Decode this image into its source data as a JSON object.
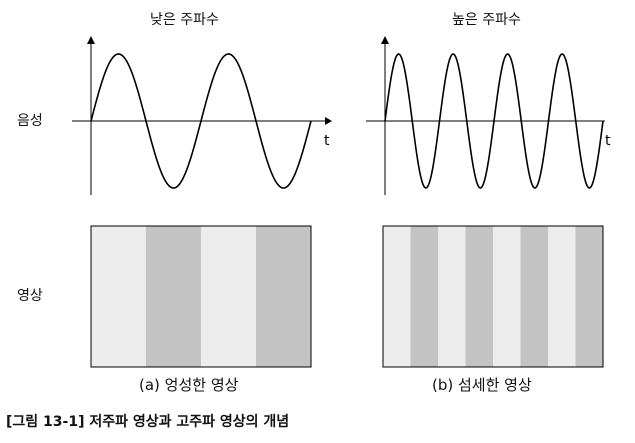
{
  "titles": {
    "low_frequency": "낮은 주파수",
    "high_frequency": "높은 주파수"
  },
  "row_labels": {
    "audio": "음성",
    "video": "영상"
  },
  "axis": {
    "time_symbol": "t"
  },
  "panels": {
    "left": {
      "cycles": 2,
      "bands": [
        "light",
        "dark",
        "light",
        "dark"
      ],
      "label": "(a) 엉성한 영상"
    },
    "right": {
      "cycles": 4,
      "bands": [
        "light",
        "dark",
        "light",
        "dark",
        "light",
        "dark",
        "light",
        "dark"
      ],
      "label": "(b) 섬세한 영상"
    }
  },
  "colors": {
    "light": "#ececec",
    "dark": "#c3c3c3",
    "line": "#000000"
  },
  "caption": "[그림 13-1] 저주파 영상과 고주파 영상의 개념"
}
